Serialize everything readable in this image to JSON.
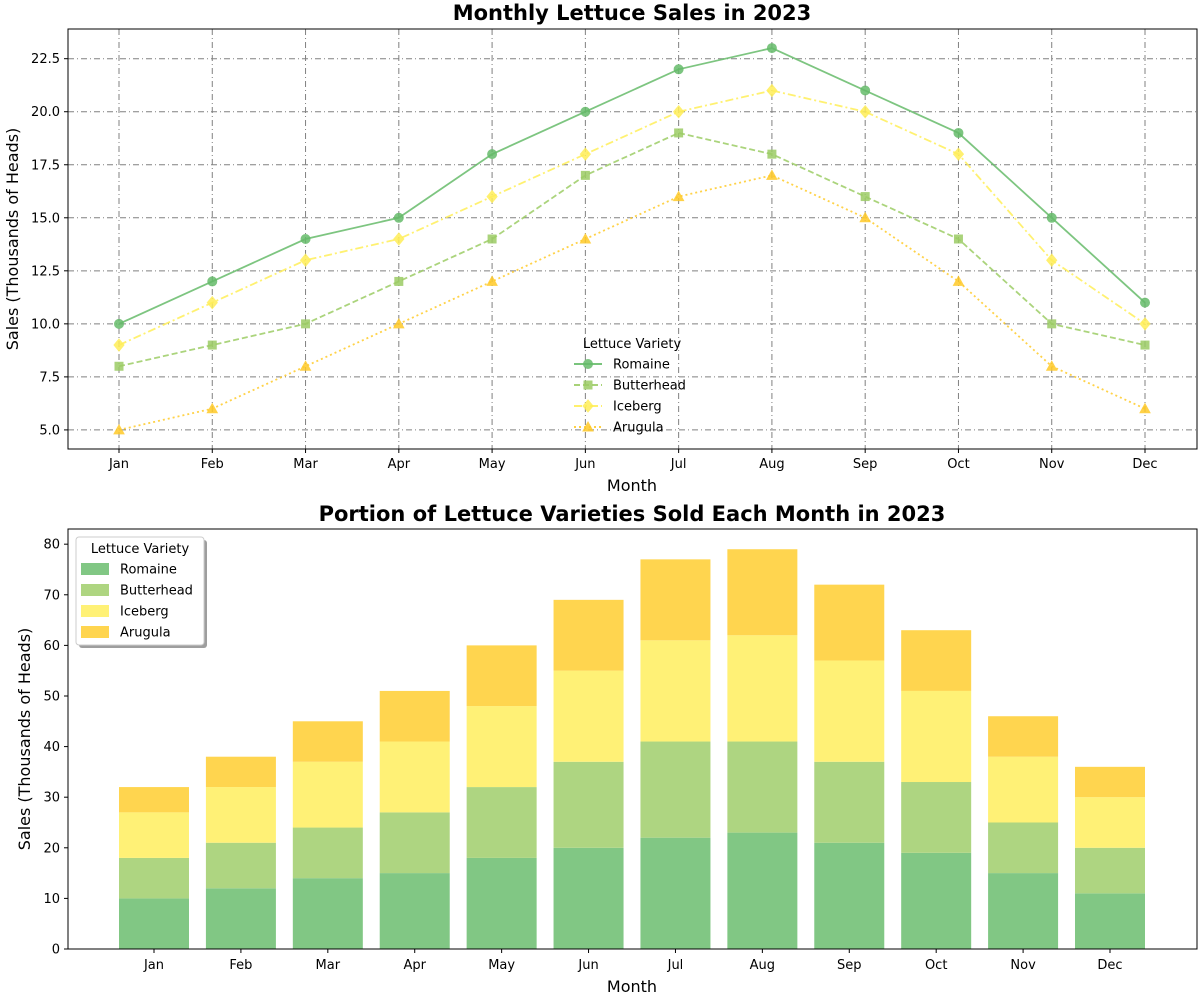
{
  "chart_data": [
    {
      "type": "line",
      "title": "Monthly Lettuce Sales in 2023",
      "xlabel": "Month",
      "ylabel": "Sales (Thousands of Heads)",
      "categories": [
        "Jan",
        "Feb",
        "Mar",
        "Apr",
        "May",
        "Jun",
        "Jul",
        "Aug",
        "Sep",
        "Oct",
        "Nov",
        "Dec"
      ],
      "ylim": [
        4.1,
        23.9
      ],
      "yticks": [
        "5.0",
        "7.5",
        "10.0",
        "12.5",
        "15.0",
        "17.5",
        "20.0",
        "22.5"
      ],
      "grid": true,
      "legend": {
        "title": "Lettuce Variety",
        "placement": "lower-center"
      },
      "series": [
        {
          "name": "Romaine",
          "values": [
            10,
            12,
            14,
            15,
            18,
            20,
            22,
            23,
            21,
            19,
            15,
            11
          ],
          "color": "#66bb6a",
          "marker": "circle",
          "linestyle": "solid"
        },
        {
          "name": "Butterhead",
          "values": [
            8,
            9,
            10,
            12,
            14,
            17,
            19,
            18,
            16,
            14,
            10,
            9
          ],
          "color": "#9ccc65",
          "marker": "square",
          "linestyle": "dashed"
        },
        {
          "name": "Iceberg",
          "values": [
            9,
            11,
            13,
            14,
            16,
            18,
            20,
            21,
            20,
            18,
            13,
            10
          ],
          "color": "#ffee58",
          "marker": "diamond",
          "linestyle": "dashdot"
        },
        {
          "name": "Arugula",
          "values": [
            5,
            6,
            8,
            10,
            12,
            14,
            16,
            17,
            15,
            12,
            8,
            6
          ],
          "color": "#ffca28",
          "marker": "triangle",
          "linestyle": "dotted"
        }
      ]
    },
    {
      "type": "bar",
      "stacked": true,
      "title": "Portion of Lettuce Varieties Sold Each Month in 2023",
      "xlabel": "Month",
      "ylabel": "Sales (Thousands of Heads)",
      "categories": [
        "Jan",
        "Feb",
        "Mar",
        "Apr",
        "May",
        "Jun",
        "Jul",
        "Aug",
        "Sep",
        "Oct",
        "Nov",
        "Dec"
      ],
      "ylim": [
        0,
        83
      ],
      "yticks": [
        "0",
        "10",
        "20",
        "30",
        "40",
        "50",
        "60",
        "70",
        "80"
      ],
      "grid": false,
      "legend": {
        "title": "Lettuce Variety",
        "placement": "upper-left"
      },
      "series": [
        {
          "name": "Romaine",
          "values": [
            10,
            12,
            14,
            15,
            18,
            20,
            22,
            23,
            21,
            19,
            15,
            11
          ],
          "color": "#81c784"
        },
        {
          "name": "Butterhead",
          "values": [
            8,
            9,
            10,
            12,
            14,
            17,
            19,
            18,
            16,
            14,
            10,
            9
          ],
          "color": "#aed581"
        },
        {
          "name": "Iceberg",
          "values": [
            9,
            11,
            13,
            14,
            16,
            18,
            20,
            21,
            20,
            18,
            13,
            10
          ],
          "color": "#fff176"
        },
        {
          "name": "Arugula",
          "values": [
            5,
            6,
            8,
            10,
            12,
            14,
            16,
            17,
            15,
            12,
            8,
            6
          ],
          "color": "#ffd54f"
        }
      ]
    }
  ]
}
